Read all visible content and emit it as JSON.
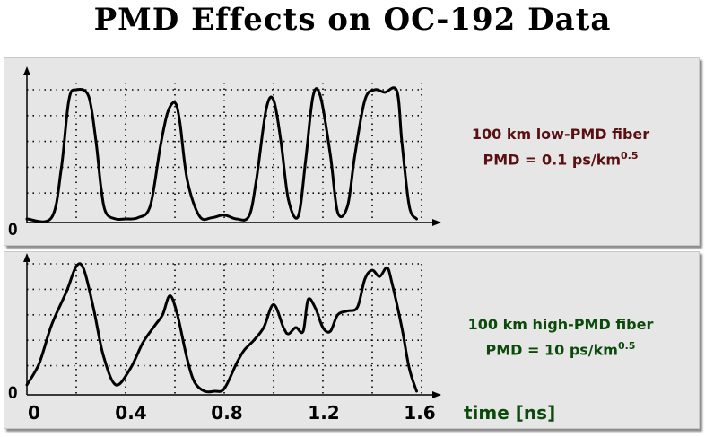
{
  "title": "PMD Effects on OC-192 Data",
  "colors": {
    "top_text": "#5a1010",
    "bottom_text": "#0b4a0b",
    "trace": "#000000",
    "axis_label": "#0b4a0b"
  },
  "x_axis": {
    "label": "time [ns]",
    "ticks": [
      "0",
      "0.4",
      "0.8",
      "1.2",
      "1.6"
    ]
  },
  "chart_data": [
    {
      "type": "line",
      "panel": "top",
      "title": "",
      "label_line1": "100 km low-PMD fiber",
      "label_line2_prefix": "PMD = 0.1 ps/km",
      "label_line2_sup": "0.5",
      "y_zero_label": "0",
      "xlabel": "time [ns]",
      "xlim": [
        0,
        1.6
      ],
      "ylim": [
        0,
        1
      ],
      "grid": "dotted",
      "x": [
        0.0,
        0.1,
        0.14,
        0.17,
        0.2,
        0.25,
        0.28,
        0.3,
        0.32,
        0.36,
        0.4,
        0.45,
        0.5,
        0.54,
        0.57,
        0.6,
        0.62,
        0.65,
        0.7,
        0.75,
        0.8,
        0.85,
        0.9,
        0.93,
        0.97,
        1.0,
        1.03,
        1.06,
        1.1,
        1.13,
        1.16,
        1.19,
        1.23,
        1.26,
        1.3,
        1.33,
        1.37,
        1.41,
        1.45,
        1.5,
        1.52,
        1.55,
        1.58
      ],
      "y": [
        0.0,
        0.01,
        0.4,
        0.92,
        1.0,
        0.95,
        0.6,
        0.25,
        0.05,
        0.0,
        0.0,
        0.01,
        0.1,
        0.55,
        0.82,
        0.9,
        0.75,
        0.3,
        0.02,
        0.01,
        0.03,
        0.0,
        0.02,
        0.3,
        0.85,
        0.92,
        0.6,
        0.15,
        0.02,
        0.45,
        0.95,
        0.95,
        0.5,
        0.05,
        0.1,
        0.5,
        0.92,
        1.0,
        0.98,
        0.99,
        0.6,
        0.1,
        0.0
      ]
    },
    {
      "type": "line",
      "panel": "bottom",
      "title": "",
      "label_line1": "100 km high-PMD fiber",
      "label_line2_prefix": "PMD = 10 ps/km",
      "label_line2_sup": "0.5",
      "y_zero_label": "0",
      "xlabel": "time [ns]",
      "xlim": [
        0,
        1.6
      ],
      "ylim": [
        0,
        1
      ],
      "grid": "dotted",
      "x": [
        0.0,
        0.05,
        0.1,
        0.16,
        0.2,
        0.23,
        0.27,
        0.31,
        0.36,
        0.42,
        0.47,
        0.52,
        0.55,
        0.58,
        0.61,
        0.65,
        0.68,
        0.72,
        0.76,
        0.8,
        0.85,
        0.88,
        0.92,
        0.96,
        1.0,
        1.04,
        1.06,
        1.09,
        1.12,
        1.14,
        1.17,
        1.2,
        1.23,
        1.26,
        1.3,
        1.34,
        1.37,
        1.4,
        1.43,
        1.46,
        1.48,
        1.52,
        1.55,
        1.58
      ],
      "y": [
        0.05,
        0.22,
        0.52,
        0.78,
        0.98,
        0.96,
        0.65,
        0.28,
        0.05,
        0.18,
        0.38,
        0.52,
        0.6,
        0.75,
        0.6,
        0.25,
        0.07,
        0.0,
        0.0,
        0.02,
        0.22,
        0.32,
        0.4,
        0.5,
        0.68,
        0.5,
        0.45,
        0.5,
        0.47,
        0.72,
        0.65,
        0.5,
        0.47,
        0.6,
        0.63,
        0.66,
        0.88,
        0.95,
        0.9,
        0.97,
        0.85,
        0.5,
        0.18,
        0.0
      ]
    }
  ]
}
